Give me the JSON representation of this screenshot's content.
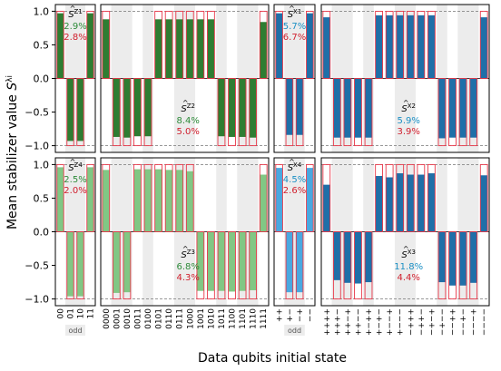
{
  "chart_data": {
    "type": "bar",
    "ylabel": "Mean stabilizer value",
    "ylabel_symbol": "S",
    "ylabel_superscript": "λi",
    "xlabel": "Data qubits initial state",
    "ylim": [
      -1.1,
      1.1
    ],
    "yticks": [
      "1.0",
      "0.5",
      "0.0",
      "−0.5",
      "−1.0"
    ],
    "odd_label": "odd",
    "colors": {
      "z_bar": "#2e7d32",
      "z_bar_light": "#81c784",
      "x_bar": "#1f6fa8",
      "x_bar_light": "#4aa8e0",
      "ideal_outline": "#e8394a",
      "shade": "#ececec",
      "green_text": "#2e8b3a",
      "blue_text": "#1a8fc4",
      "red_text": "#d0202e"
    },
    "categories_left": [
      "00",
      "01",
      "10",
      "11"
    ],
    "categories_mid": [
      "0000",
      "0001",
      "0010",
      "0011",
      "0100",
      "0101",
      "0110",
      "0111",
      "1000",
      "1001",
      "1010",
      "1011",
      "1100",
      "1101",
      "1110",
      "1111"
    ],
    "categories_left_x": [
      "++",
      "+−",
      "−+",
      "−−"
    ],
    "categories_mid_x": [
      "++++",
      "+++−",
      "++−+",
      "++−−",
      "+−++",
      "+−+−",
      "+−−+",
      "+−−−",
      "−+++",
      "−++−",
      "−+−+",
      "−+−−",
      "−−++",
      "−−+−",
      "−−−+",
      "−−−−"
    ],
    "panels": [
      {
        "label": "Z1",
        "values": [
          0.97,
          -0.93,
          -0.93,
          0.97
        ],
        "ideal": [
          1,
          -1,
          -1,
          1
        ],
        "pct_top": "2.9%",
        "pct_bottom": "2.8%",
        "top_color": "green_text"
      },
      {
        "label": "Z2",
        "values": [
          0.88,
          -0.87,
          -0.88,
          -0.86,
          -0.86,
          0.88,
          0.88,
          0.88,
          0.88,
          0.88,
          0.88,
          -0.86,
          -0.87,
          -0.87,
          -0.88,
          0.84
        ],
        "ideal": [
          1,
          -1,
          -1,
          -1,
          -1,
          1,
          1,
          1,
          1,
          1,
          1,
          -1,
          -1,
          -1,
          -1,
          1
        ],
        "pct_top": "8.4%",
        "pct_bottom": "5.0%",
        "top_color": "green_text"
      },
      {
        "label": "X1",
        "values": [
          0.97,
          -0.84,
          -0.84,
          0.97
        ],
        "ideal": [
          1,
          -1,
          -1,
          1
        ],
        "pct_top": "5.7%",
        "pct_bottom": "6.7%",
        "top_color": "blue_text"
      },
      {
        "label": "X2",
        "values": [
          0.91,
          -0.88,
          -0.88,
          -0.88,
          -0.88,
          0.94,
          0.94,
          0.94,
          0.94,
          0.94,
          0.94,
          -0.89,
          -0.88,
          -0.88,
          -0.88,
          0.91
        ],
        "ideal": [
          1,
          -1,
          -1,
          -1,
          -1,
          1,
          1,
          1,
          1,
          1,
          1,
          -1,
          -1,
          -1,
          -1,
          1
        ],
        "pct_top": "5.9%",
        "pct_bottom": "3.9%",
        "top_color": "blue_text"
      },
      {
        "label": "Z4",
        "values": [
          0.96,
          -0.96,
          -0.96,
          0.96
        ],
        "ideal": [
          1,
          -1,
          -1,
          1
        ],
        "pct_top": "2.5%",
        "pct_bottom": "2.0%",
        "top_color": "green_text"
      },
      {
        "label": "Z3",
        "values": [
          0.92,
          -0.91,
          -0.9,
          0.93,
          0.93,
          0.93,
          0.92,
          0.92,
          0.9,
          -0.88,
          -0.88,
          -0.88,
          -0.89,
          -0.88,
          -0.87,
          0.85
        ],
        "ideal": [
          1,
          -1,
          -1,
          1,
          1,
          1,
          1,
          1,
          1,
          -1,
          -1,
          -1,
          -1,
          -1,
          -1,
          1
        ],
        "pct_top": "6.8%",
        "pct_bottom": "4.3%",
        "top_color": "green_text"
      },
      {
        "label": "X4",
        "values": [
          0.95,
          -0.9,
          -0.9,
          0.95
        ],
        "ideal": [
          1,
          -1,
          -1,
          1
        ],
        "pct_top": "4.5%",
        "pct_bottom": "2.6%",
        "top_color": "blue_text"
      },
      {
        "label": "X3",
        "values": [
          0.7,
          -0.72,
          -0.76,
          -0.77,
          -0.75,
          0.83,
          0.81,
          0.87,
          0.85,
          0.85,
          0.87,
          -0.75,
          -0.8,
          -0.8,
          -0.76,
          0.84
        ],
        "ideal": [
          1,
          -1,
          -1,
          -1,
          -1,
          1,
          1,
          1,
          1,
          1,
          1,
          -1,
          -1,
          -1,
          -1,
          1
        ],
        "pct_top": "11.8%",
        "pct_bottom": "4.4%",
        "top_color": "blue_text"
      }
    ]
  }
}
